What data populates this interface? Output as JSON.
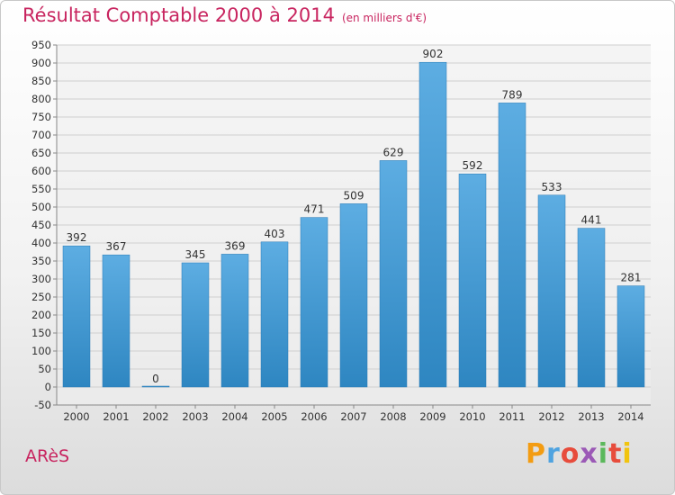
{
  "header": {
    "title": "Résultat Comptable 2000 à 2014",
    "unit": "(en milliers d'€)"
  },
  "footer": {
    "commune": "ARèS",
    "logo": "Proxiti",
    "logo_colors": [
      "#f39c12",
      "#4fa3e0",
      "#e74c3c",
      "#9b59b6",
      "#5bb85b",
      "#e74c3c",
      "#f1c40f"
    ]
  },
  "colors": {
    "bar_top": "#5dade2",
    "bar_bottom": "#2e86c1",
    "title": "#c8245f"
  },
  "chart_data": {
    "type": "bar",
    "categories": [
      "2000",
      "2001",
      "2002",
      "2003",
      "2004",
      "2005",
      "2006",
      "2007",
      "2008",
      "2009",
      "2010",
      "2011",
      "2012",
      "2013",
      "2014"
    ],
    "values": [
      392,
      367,
      0,
      345,
      369,
      403,
      471,
      509,
      629,
      902,
      592,
      789,
      533,
      441,
      281
    ],
    "ylim": [
      -50,
      950
    ],
    "ytick_step": 50,
    "grid": true
  }
}
